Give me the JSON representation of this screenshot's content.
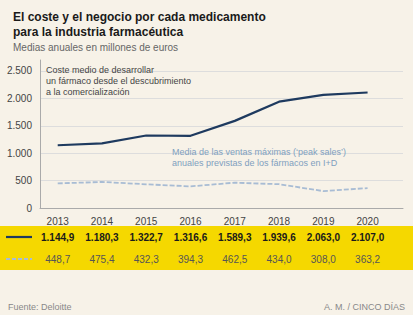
{
  "chart_data": {
    "type": "line",
    "title": "El coste y el negocio por cada medicamento\npara la industria farmacéutica",
    "subtitle": "Medias anuales en millones de euros",
    "x": [
      2013,
      2014,
      2015,
      2016,
      2017,
      2018,
      2019,
      2020
    ],
    "xlim": [
      2012.6,
      2020.8
    ],
    "xticks": [
      2013,
      2014,
      2015,
      2016,
      2017,
      2018,
      2019,
      2020
    ],
    "ylim": [
      0,
      2700
    ],
    "yticks": [
      0,
      500,
      {
        "value": 1000,
        "label": "1.000"
      },
      {
        "value": 1500,
        "label": "1.500"
      },
      {
        "value": 2000,
        "label": "2.000"
      },
      {
        "value": 2500,
        "label": "2.500"
      }
    ],
    "grid": true,
    "series": [
      {
        "color": "#1e3a5f",
        "line_style": "solid",
        "values": [
          1144.9,
          1180.3,
          1322.7,
          1316.6,
          1589.3,
          1939.6,
          2063.0,
          2107.0
        ],
        "value_labels": [
          "1.144,9",
          "1.180,3",
          "1.322,7",
          "1.316,6",
          "1.589,3",
          "1.939,6",
          "2.063,0",
          "2.107,0"
        ]
      },
      {
        "color": "#a8bcd4",
        "line_style": "dashed",
        "values": [
          448.7,
          475.4,
          432.3,
          394.3,
          462.5,
          434.0,
          308.0,
          363.2
        ],
        "value_labels": [
          "448,7",
          "475,4",
          "432,3",
          "394,3",
          "462,5",
          "434,0",
          "308,0",
          "363,2"
        ]
      }
    ],
    "annotations": [
      "Coste medio de desarrollar\nun fármaco desde el descubrimiento\na la comercialización",
      "Media de las ventas máximas (‘peak sales’)\nanuales previstas de los fármacos en I+D"
    ],
    "source": "Fuente: Deloitte",
    "credit": "A. M. / CINCO DÍAS"
  }
}
